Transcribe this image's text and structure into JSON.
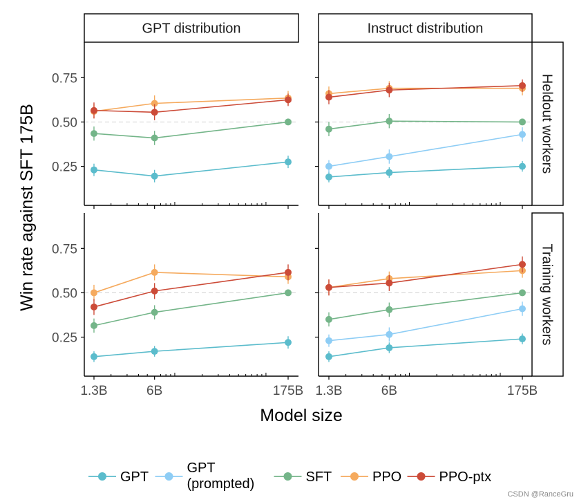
{
  "chart_data": {
    "type": "line",
    "facet_columns": [
      "GPT distribution",
      "Instruct distribution"
    ],
    "facet_rows": [
      "Heldout workers",
      "Training workers"
    ],
    "xlabel": "Model size",
    "ylabel": "Win rate against SFT 175B",
    "x_scale": "log",
    "xticks": [
      {
        "value": 1.3,
        "label": "1.3B"
      },
      {
        "value": 6,
        "label": "6B"
      },
      {
        "value": 175,
        "label": "175B"
      }
    ],
    "ylim": [
      0.03,
      0.95
    ],
    "yticks": [
      {
        "value": 0.25,
        "label": "0.25"
      },
      {
        "value": 0.5,
        "label": "0.50"
      },
      {
        "value": 0.75,
        "label": "0.75"
      }
    ],
    "reference_line": 0.5,
    "series_meta": [
      {
        "key": "gpt",
        "name": "GPT",
        "color": "#5bbccc"
      },
      {
        "key": "gpt_prompted",
        "name": "GPT\n(prompted)",
        "color": "#8ecdf5"
      },
      {
        "key": "sft",
        "name": "SFT",
        "color": "#74b589"
      },
      {
        "key": "ppo",
        "name": "PPO",
        "color": "#f5aa5e"
      },
      {
        "key": "ppo_ptx",
        "name": "PPO-ptx",
        "color": "#cc4b38"
      }
    ],
    "panels": [
      {
        "column": "GPT distribution",
        "row": "Heldout workers",
        "series": [
          {
            "key": "gpt",
            "values": [
              0.23,
              0.195,
              0.275
            ],
            "err": [
              0.035,
              0.035,
              0.035
            ]
          },
          {
            "key": "sft",
            "values": [
              0.435,
              0.41,
              0.5
            ],
            "err": [
              0.04,
              0.04,
              0.0
            ]
          },
          {
            "key": "ppo",
            "values": [
              0.56,
              0.605,
              0.635
            ],
            "err": [
              0.04,
              0.045,
              0.04
            ]
          },
          {
            "key": "ppo_ptx",
            "values": [
              0.565,
              0.555,
              0.625
            ],
            "err": [
              0.045,
              0.045,
              0.035
            ]
          }
        ]
      },
      {
        "column": "Instruct distribution",
        "row": "Heldout workers",
        "series": [
          {
            "key": "gpt",
            "values": [
              0.19,
              0.215,
              0.25
            ],
            "err": [
              0.03,
              0.03,
              0.03
            ]
          },
          {
            "key": "gpt_prompted",
            "values": [
              0.25,
              0.305,
              0.43
            ],
            "err": [
              0.035,
              0.04,
              0.04
            ]
          },
          {
            "key": "sft",
            "values": [
              0.46,
              0.505,
              0.5
            ],
            "err": [
              0.04,
              0.04,
              0.0
            ]
          },
          {
            "key": "ppo",
            "values": [
              0.66,
              0.69,
              0.69
            ],
            "err": [
              0.04,
              0.04,
              0.04
            ]
          },
          {
            "key": "ppo_ptx",
            "values": [
              0.64,
              0.68,
              0.705
            ],
            "err": [
              0.04,
              0.04,
              0.035
            ]
          }
        ]
      },
      {
        "column": "GPT distribution",
        "row": "Training workers",
        "series": [
          {
            "key": "gpt",
            "values": [
              0.14,
              0.17,
              0.22
            ],
            "err": [
              0.03,
              0.03,
              0.035
            ]
          },
          {
            "key": "sft",
            "values": [
              0.315,
              0.39,
              0.5
            ],
            "err": [
              0.04,
              0.04,
              0.0
            ]
          },
          {
            "key": "ppo",
            "values": [
              0.5,
              0.615,
              0.59
            ],
            "err": [
              0.045,
              0.045,
              0.04
            ]
          },
          {
            "key": "ppo_ptx",
            "values": [
              0.42,
              0.51,
              0.615
            ],
            "err": [
              0.045,
              0.045,
              0.045
            ]
          }
        ]
      },
      {
        "column": "Instruct distribution",
        "row": "Training workers",
        "series": [
          {
            "key": "gpt",
            "values": [
              0.14,
              0.19,
              0.24
            ],
            "err": [
              0.03,
              0.03,
              0.03
            ]
          },
          {
            "key": "gpt_prompted",
            "values": [
              0.23,
              0.265,
              0.41
            ],
            "err": [
              0.035,
              0.04,
              0.04
            ]
          },
          {
            "key": "sft",
            "values": [
              0.35,
              0.405,
              0.5
            ],
            "err": [
              0.04,
              0.04,
              0.0
            ]
          },
          {
            "key": "ppo",
            "values": [
              0.53,
              0.58,
              0.625
            ],
            "err": [
              0.045,
              0.04,
              0.04
            ]
          },
          {
            "key": "ppo_ptx",
            "values": [
              0.53,
              0.555,
              0.66
            ],
            "err": [
              0.045,
              0.045,
              0.045
            ]
          }
        ]
      }
    ]
  },
  "watermark": "CSDN @RanceGru"
}
